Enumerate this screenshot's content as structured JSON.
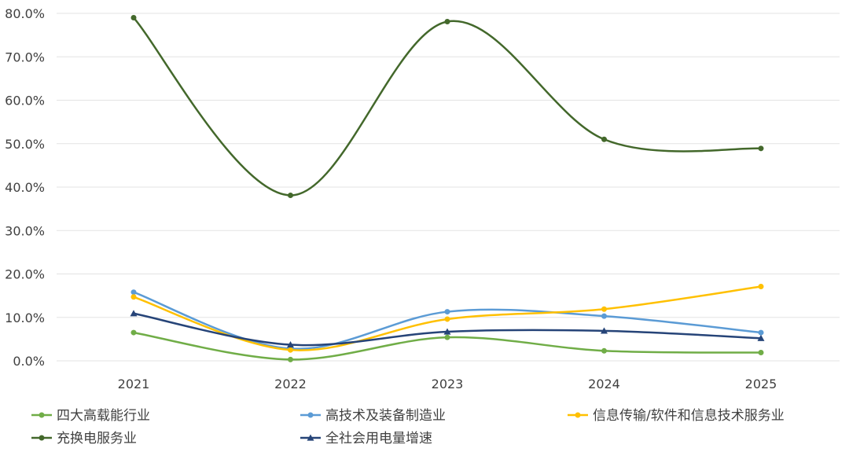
{
  "chart_data": {
    "type": "line",
    "title": "",
    "xlabel": "",
    "ylabel": "",
    "categories": [
      "2021",
      "2022",
      "2023",
      "2024",
      "2025"
    ],
    "ylim": [
      0,
      0.8
    ],
    "yticks": [
      "0.0%",
      "10.0%",
      "20.0%",
      "30.0%",
      "40.0%",
      "50.0%",
      "60.0%",
      "70.0%",
      "80.0%"
    ],
    "grid": "horizontal",
    "legend_position": "bottom",
    "smoothed": true,
    "series": [
      {
        "name": "四大高载能行业",
        "values": [
          0.065,
          0.003,
          0.054,
          0.023,
          0.019
        ],
        "color": "#70ad47",
        "marker": "circle"
      },
      {
        "name": "高技术及装备制造业",
        "values": [
          0.158,
          0.028,
          0.113,
          0.103,
          0.065
        ],
        "color": "#5b9bd5",
        "marker": "circle"
      },
      {
        "name": "信息传输/软件和信息技术服务业",
        "values": [
          0.147,
          0.025,
          0.096,
          0.119,
          0.171
        ],
        "color": "#ffc000",
        "marker": "circle"
      },
      {
        "name": "充换电服务业",
        "values": [
          0.79,
          0.381,
          0.781,
          0.51,
          0.489
        ],
        "color": "#43682b",
        "marker": "circle"
      },
      {
        "name": "全社会用电量增速",
        "values": [
          0.109,
          0.037,
          0.067,
          0.069,
          0.052
        ],
        "color": "#264478",
        "marker": "triangle"
      }
    ]
  }
}
